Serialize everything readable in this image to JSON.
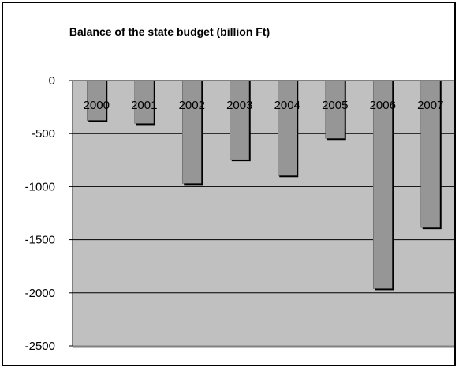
{
  "chart_data": {
    "type": "bar",
    "title": "Balance of the state budget (billion Ft)",
    "categories": [
      "2000",
      "2001",
      "2002",
      "2003",
      "2004",
      "2005",
      "2006",
      "2007"
    ],
    "values": [
      -375,
      -405,
      -970,
      -745,
      -895,
      -545,
      -1960,
      -1385
    ],
    "ylim": [
      -2500,
      0
    ],
    "yticks": [
      0,
      -500,
      -1000,
      -1500,
      -2000,
      -2500
    ],
    "ytick_labels": [
      "0",
      "-500",
      "-1000",
      "-1500",
      "-2000",
      "-2500"
    ],
    "grid": true,
    "legend": "none",
    "colors": {
      "plot_bg": "#c0c0c0",
      "bar": "#969696",
      "frame": "#000000"
    }
  }
}
